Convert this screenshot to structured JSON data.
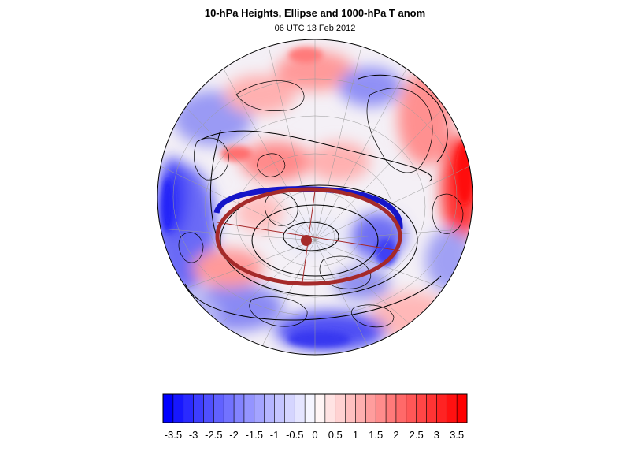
{
  "figure": {
    "title": "10-hPa Heights, Ellipse and 1000-hPa T anom",
    "subtitle": "06 UTC 13 Feb 2012"
  },
  "colors": {
    "negative_max": "#0000ff",
    "positive_max": "#ff0000",
    "ellipse_fill_line": "#a52a2a",
    "ellipse_edge_blue": "#1010c0",
    "contour_line": "#000000",
    "coastline": "#000000"
  },
  "chart_data": {
    "type": "heatmap",
    "projection": "orthographic-polar",
    "colorbar": {
      "min": -3.75,
      "max": 3.75,
      "step": 0.25,
      "tick_labels": [
        "-3.5",
        "-3",
        "-2.5",
        "-2",
        "-1.5",
        "-1",
        "-0.5",
        "0",
        "0.5",
        "1",
        "1.5",
        "2",
        "2.5",
        "3",
        "3.5"
      ],
      "tick_values": [
        -3.5,
        -3,
        -2.5,
        -2,
        -1.5,
        -1,
        -0.5,
        0,
        0.5,
        1,
        1.5,
        2,
        2.5,
        3,
        3.5
      ]
    },
    "ellipse": {
      "shown": true,
      "description_visible": false
    }
  }
}
